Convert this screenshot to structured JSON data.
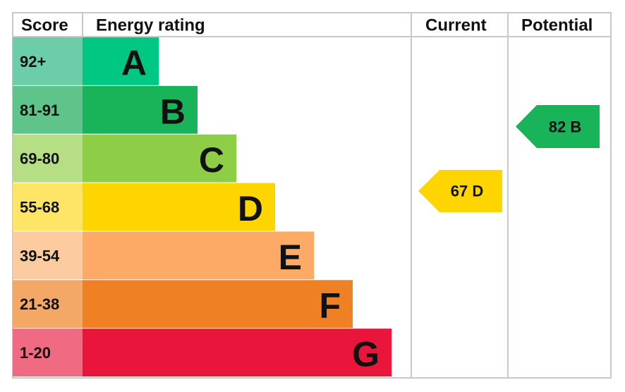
{
  "header": {
    "score": "Score",
    "energy_rating": "Energy rating",
    "current": "Current",
    "potential": "Potential"
  },
  "bands": [
    {
      "score": "92+",
      "letter": "A",
      "color": "#00c781",
      "score_color": "#6ccea8"
    },
    {
      "score": "81-91",
      "letter": "B",
      "color": "#19b459",
      "score_color": "#5fc48a"
    },
    {
      "score": "69-80",
      "letter": "C",
      "color": "#8dce46",
      "score_color": "#b6de85"
    },
    {
      "score": "55-68",
      "letter": "D",
      "color": "#ffd500",
      "score_color": "#ffe566"
    },
    {
      "score": "39-54",
      "letter": "E",
      "color": "#fcaa65",
      "score_color": "#fdcba0"
    },
    {
      "score": "21-38",
      "letter": "F",
      "color": "#ef8023",
      "score_color": "#f4a865"
    },
    {
      "score": "1-20",
      "letter": "G",
      "color": "#e9153b",
      "score_color": "#f06a82"
    }
  ],
  "current": {
    "label": "67 D",
    "color": "#ffd500"
  },
  "potential": {
    "label": "82 B",
    "color": "#19b459"
  }
}
